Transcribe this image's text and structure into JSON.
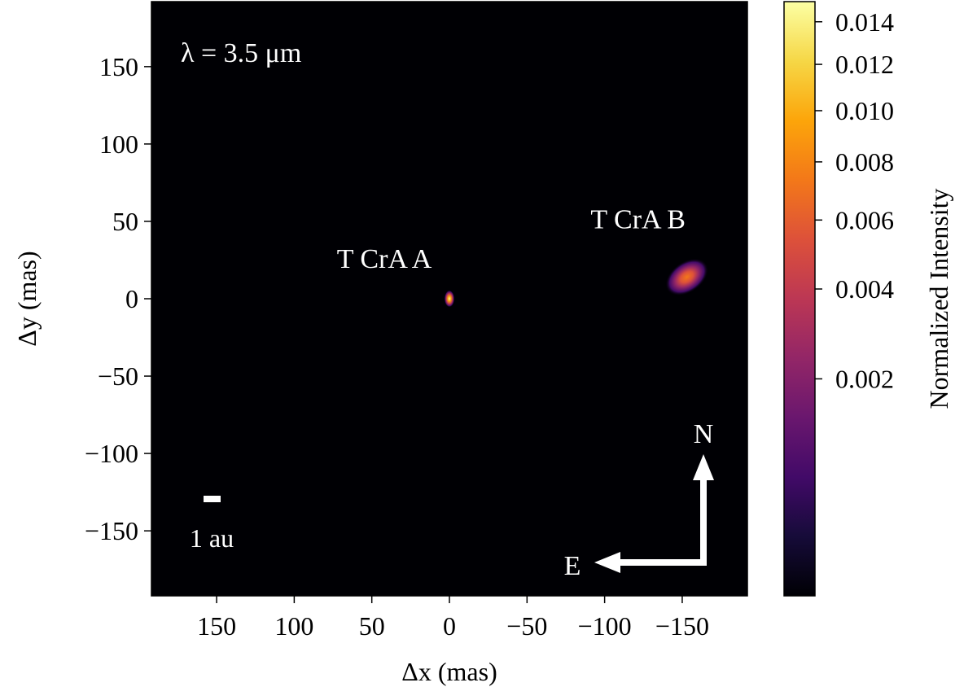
{
  "chart_data": {
    "type": "heatmap",
    "annotation_wavelength": "λ = 3.5 μm",
    "xlabel": "Δx (mas)",
    "ylabel": "Δy (mas)",
    "xlim": [
      192,
      -192
    ],
    "ylim": [
      -192,
      192
    ],
    "x_ticks": [
      150,
      100,
      50,
      0,
      -50,
      -100,
      -150
    ],
    "x_tick_labels": [
      "150",
      "100",
      "50",
      "0",
      "−50",
      "−100",
      "−150"
    ],
    "y_ticks": [
      150,
      100,
      50,
      0,
      -50,
      -100,
      -150
    ],
    "y_tick_labels": [
      "150",
      "100",
      "50",
      "0",
      "−50",
      "−100",
      "−150"
    ],
    "sources": [
      {
        "label": "T CrA A",
        "x": 0,
        "y": 0,
        "peak_intensity": 0.015,
        "sigma_x": 1.5,
        "sigma_y": 2.5,
        "angle_deg": 0
      },
      {
        "label": "T CrA B",
        "x": -153,
        "y": 14,
        "peak_intensity": 0.006,
        "sigma_x": 7,
        "sigma_y": 4.5,
        "angle_deg": 35
      }
    ],
    "scale_bar_label": "1 au",
    "compass": {
      "north": "N",
      "east": "E"
    },
    "colorbar": {
      "label": "Normalized Intensity",
      "colormap": "inferno",
      "scale": "sqrt",
      "range": [
        0,
        0.015
      ],
      "ticks": [
        0.014,
        0.012,
        0.01,
        0.008,
        0.006,
        0.004,
        0.002
      ],
      "tick_labels": [
        "0.014",
        "0.012",
        "0.010",
        "0.008",
        "0.006",
        "0.004",
        "0.002"
      ]
    },
    "colors": {
      "background": "#000004",
      "annotation": "#ffffff"
    }
  }
}
